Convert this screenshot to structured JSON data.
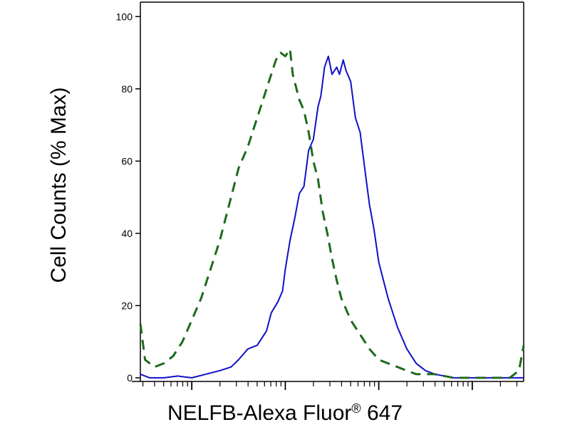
{
  "chart_data": {
    "type": "line",
    "xlabel": "NELFB-Alexa Fluor",
    "xlabel_superscript": "®",
    "xlabel_suffix": " 647",
    "ylabel": "Cell Counts (% Max)",
    "x_scale": "log",
    "ylim": [
      0,
      100
    ],
    "yticks": [
      0,
      20,
      40,
      60,
      80,
      100
    ],
    "xticks_major_decades": [
      1,
      2,
      3
    ],
    "grid": false,
    "legend": "none",
    "series": [
      {
        "color": "#1010c8",
        "line_style": "solid",
        "x": [
          -0.55,
          -0.45,
          -0.3,
          -0.15,
          0.0,
          0.15,
          0.3,
          0.42,
          0.5,
          0.6,
          0.7,
          0.8,
          0.85,
          0.92,
          0.97,
          1.0,
          1.05,
          1.1,
          1.15,
          1.2,
          1.25,
          1.3,
          1.35,
          1.38,
          1.42,
          1.46,
          1.5,
          1.55,
          1.58,
          1.62,
          1.65,
          1.7,
          1.75,
          1.8,
          1.85,
          1.9,
          1.95,
          2.0,
          2.1,
          2.2,
          2.3,
          2.4,
          2.5,
          2.6,
          2.8,
          3.0,
          3.2,
          3.4,
          3.55
        ],
        "y": [
          1,
          0,
          0,
          0.5,
          0,
          1,
          2,
          3,
          5,
          8,
          9,
          13,
          18,
          21,
          24,
          30,
          38,
          44,
          51,
          53,
          63,
          66,
          75,
          78,
          86,
          89,
          84,
          86,
          84,
          88,
          85,
          82,
          72,
          68,
          58,
          48,
          41,
          32,
          22,
          14,
          8,
          4,
          2,
          1,
          0,
          0,
          0,
          0,
          0
        ]
      },
      {
        "color": "#1e6a1e",
        "line_style": "dashed",
        "x": [
          -0.55,
          -0.5,
          -0.4,
          -0.3,
          -0.2,
          -0.1,
          0.0,
          0.1,
          0.2,
          0.3,
          0.4,
          0.5,
          0.6,
          0.7,
          0.75,
          0.8,
          0.85,
          0.9,
          0.95,
          1.0,
          1.05,
          1.08,
          1.12,
          1.15,
          1.2,
          1.25,
          1.3,
          1.35,
          1.4,
          1.45,
          1.5,
          1.55,
          1.6,
          1.7,
          1.8,
          1.9,
          2.0,
          2.1,
          2.2,
          2.3,
          2.4,
          2.6,
          2.8,
          3.0,
          3.2,
          3.4,
          3.5,
          3.55
        ],
        "y": [
          15,
          5,
          3,
          4,
          6,
          10,
          16,
          22,
          30,
          38,
          48,
          58,
          64,
          72,
          76,
          80,
          84,
          88,
          90,
          89,
          91,
          84,
          80,
          77,
          74,
          68,
          60,
          55,
          46,
          40,
          33,
          27,
          22,
          16,
          12,
          8,
          5,
          4,
          3,
          2,
          1,
          1,
          0,
          0,
          0,
          0,
          2,
          9
        ]
      }
    ]
  }
}
